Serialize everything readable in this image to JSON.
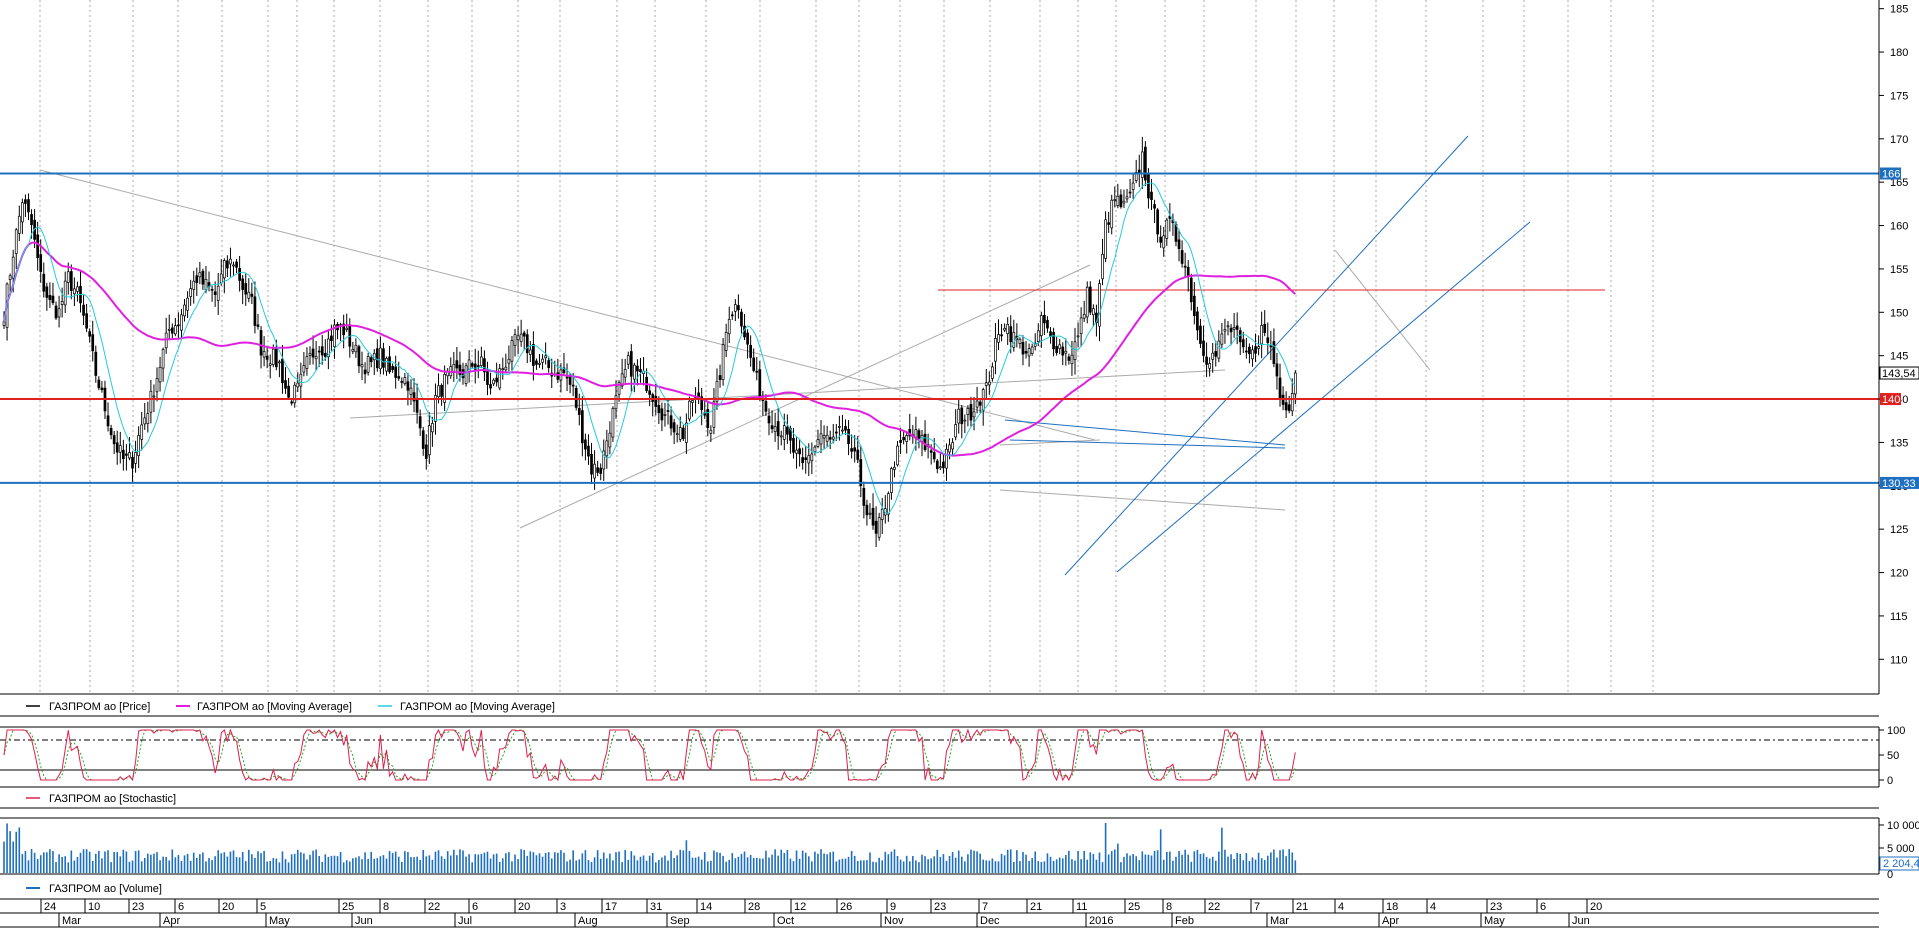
{
  "chart_data": {
    "type": "candlestick",
    "price_axis": {
      "range": [
        106,
        186
      ],
      "ticks": [
        110,
        115,
        120,
        125,
        130,
        135,
        140,
        145,
        150,
        155,
        160,
        165,
        170,
        175,
        180,
        185
      ]
    },
    "levels": [
      {
        "label": "166",
        "value": 166,
        "color": "#1f6fc0"
      },
      {
        "label": "140",
        "value": 140,
        "color": "#e02020"
      },
      {
        "label": "130,33",
        "value": 130.33,
        "color": "#1f6fc0"
      }
    ],
    "last_price_label": "143,54",
    "close_path": [
      [
        0,
        150
      ],
      [
        3,
        157
      ],
      [
        6,
        163
      ],
      [
        9,
        160
      ],
      [
        12,
        154
      ],
      [
        15,
        151
      ],
      [
        18,
        150
      ],
      [
        21,
        154
      ],
      [
        24,
        152
      ],
      [
        27,
        148
      ],
      [
        30,
        143
      ],
      [
        33,
        139
      ],
      [
        36,
        135
      ],
      [
        39,
        133
      ],
      [
        42,
        133
      ],
      [
        45,
        137
      ],
      [
        48,
        140
      ],
      [
        51,
        144
      ],
      [
        54,
        148
      ],
      [
        57,
        149
      ],
      [
        60,
        152
      ],
      [
        63,
        154
      ],
      [
        66,
        153
      ],
      [
        69,
        152
      ],
      [
        72,
        155
      ],
      [
        75,
        156
      ],
      [
        78,
        153
      ],
      [
        81,
        151
      ],
      [
        84,
        146
      ],
      [
        87,
        145
      ],
      [
        90,
        144
      ],
      [
        93,
        140
      ],
      [
        96,
        141
      ],
      [
        99,
        144
      ],
      [
        102,
        146
      ],
      [
        105,
        146
      ],
      [
        108,
        148
      ],
      [
        111,
        148
      ],
      [
        114,
        146
      ],
      [
        117,
        144
      ],
      [
        120,
        144
      ],
      [
        123,
        145
      ],
      [
        126,
        143
      ],
      [
        129,
        143
      ],
      [
        132,
        142
      ],
      [
        135,
        138
      ],
      [
        138,
        134
      ],
      [
        141,
        140
      ],
      [
        144,
        142
      ],
      [
        147,
        143
      ],
      [
        150,
        143
      ],
      [
        153,
        144
      ],
      [
        156,
        144
      ],
      [
        159,
        141
      ],
      [
        162,
        143
      ],
      [
        165,
        145
      ],
      [
        168,
        147
      ],
      [
        171,
        146
      ],
      [
        174,
        144
      ],
      [
        177,
        144
      ],
      [
        180,
        143
      ],
      [
        183,
        143
      ],
      [
        186,
        141
      ],
      [
        189,
        136
      ],
      [
        192,
        132
      ],
      [
        195,
        132
      ],
      [
        198,
        137
      ],
      [
        201,
        141
      ],
      [
        204,
        144
      ],
      [
        207,
        143
      ],
      [
        210,
        142
      ],
      [
        213,
        140
      ],
      [
        216,
        138
      ],
      [
        219,
        137
      ],
      [
        222,
        136
      ],
      [
        225,
        140
      ],
      [
        228,
        139
      ],
      [
        231,
        137
      ],
      [
        234,
        143
      ],
      [
        237,
        150
      ],
      [
        240,
        151
      ],
      [
        243,
        146
      ],
      [
        246,
        142
      ],
      [
        249,
        139
      ],
      [
        252,
        137
      ],
      [
        255,
        136
      ],
      [
        258,
        134
      ],
      [
        261,
        132
      ],
      [
        264,
        134
      ],
      [
        267,
        136
      ],
      [
        270,
        135
      ],
      [
        273,
        136
      ],
      [
        276,
        135
      ],
      [
        279,
        132
      ],
      [
        282,
        127
      ],
      [
        285,
        124
      ],
      [
        288,
        128
      ],
      [
        291,
        133
      ],
      [
        294,
        135
      ],
      [
        297,
        136
      ],
      [
        300,
        135
      ],
      [
        303,
        134
      ],
      [
        306,
        132
      ],
      [
        309,
        134
      ],
      [
        312,
        138
      ],
      [
        315,
        138
      ],
      [
        318,
        140
      ],
      [
        321,
        141
      ],
      [
        324,
        146
      ],
      [
        327,
        149
      ],
      [
        330,
        147
      ],
      [
        333,
        146
      ],
      [
        336,
        145
      ],
      [
        339,
        149
      ],
      [
        342,
        147
      ],
      [
        345,
        146
      ],
      [
        348,
        145
      ],
      [
        351,
        147
      ],
      [
        354,
        152
      ],
      [
        357,
        149
      ],
      [
        360,
        160
      ],
      [
        363,
        163
      ],
      [
        366,
        162
      ],
      [
        369,
        164
      ],
      [
        372,
        168
      ],
      [
        375,
        162
      ],
      [
        378,
        159
      ],
      [
        381,
        160
      ],
      [
        384,
        158
      ],
      [
        387,
        154
      ],
      [
        390,
        148
      ],
      [
        393,
        145
      ],
      [
        396,
        145
      ],
      [
        399,
        148
      ],
      [
        402,
        148
      ],
      [
        405,
        145
      ],
      [
        408,
        145
      ],
      [
        411,
        148
      ],
      [
        414,
        146
      ],
      [
        417,
        141
      ],
      [
        420,
        139
      ],
      [
        422,
        143
      ]
    ],
    "series": [
      {
        "name": "ГАЗПРОМ ао [Price]",
        "color": "#000000"
      },
      {
        "name": "ГАЗПРОМ ао [Moving Average]",
        "color": "#e020e0"
      },
      {
        "name": "ГАЗПРОМ ао [Moving Average]",
        "color": "#22ccdd"
      }
    ],
    "stochastic": {
      "name": "ГАЗПРОМ ао [Stochastic]",
      "ticks": [
        "100",
        "50",
        "0"
      ],
      "levels": [
        80,
        20
      ]
    },
    "volume": {
      "name": "ГАЗПРОМ ао [Volume]",
      "ticks": [
        "10 000",
        "5 000"
      ],
      "last_label": "2 204,4"
    },
    "x_axis": {
      "days": [
        "24",
        "10",
        "23",
        "6",
        "20",
        "5",
        "25",
        "8",
        "22",
        "6",
        "20",
        "3",
        "17",
        "31",
        "14",
        "28",
        "12",
        "26",
        "9",
        "23",
        "7",
        "21",
        "11",
        "25",
        "8",
        "22",
        "7",
        "21",
        "4",
        "18",
        "4",
        "23",
        "6",
        "20"
      ],
      "months": [
        "Mar",
        "Apr",
        "May",
        "Jun",
        "Jul",
        "Aug",
        "Sep",
        "Oct",
        "Nov",
        "Dec",
        "2016",
        "Feb",
        "Mar",
        "Apr",
        "May",
        "Jun"
      ]
    }
  }
}
